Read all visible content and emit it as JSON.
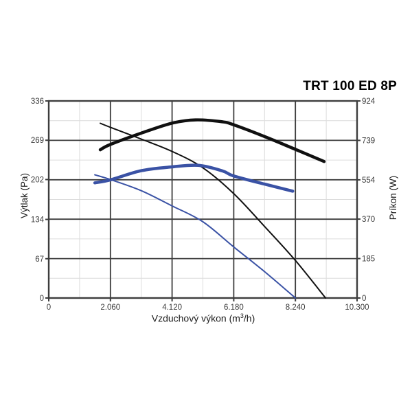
{
  "title": "TRT 100 ED 8P",
  "axis_titles": {
    "x_pre": "Vzduchový výkon (m",
    "x_sup": "3",
    "x_post": "/h)",
    "y_left": "Výtlak (Pa)",
    "y_right": "Príkon (W)"
  },
  "chart_data": {
    "type": "line",
    "title": "TRT 100 ED 8P",
    "xlabel": "Vzduchový výkon (m3/h)",
    "ylabel_left": "Výtlak (Pa)",
    "ylabel_right": "Príkon (W)",
    "xlim": [
      0,
      10300
    ],
    "ylim_left": [
      0,
      336
    ],
    "ylim_right": [
      0,
      924
    ],
    "x_ticks": [
      0,
      2060,
      4120,
      6180,
      8240,
      10300
    ],
    "x_tick_labels": [
      "0",
      "2.060",
      "4.120",
      "6.180",
      "8.240",
      "10.300"
    ],
    "y_left_ticks": [
      0,
      67,
      134,
      202,
      269,
      336
    ],
    "y_left_tick_labels": [
      "0",
      "67",
      "134",
      "202",
      "269",
      "336"
    ],
    "y_right_ticks": [
      0,
      185,
      370,
      554,
      739,
      924
    ],
    "y_right_tick_labels": [
      "0",
      "185",
      "370",
      "554",
      "739",
      "924"
    ],
    "grid": {
      "major": true,
      "minor": true
    },
    "legend": "none",
    "series": [
      {
        "name": "pressure-high-speed",
        "axis": "left",
        "unit": "Pa",
        "color": "#101010",
        "width": 2,
        "points": [
          [
            1720,
            298
          ],
          [
            2060,
            291
          ],
          [
            3090,
            271
          ],
          [
            4120,
            250
          ],
          [
            5150,
            222
          ],
          [
            6180,
            178
          ],
          [
            7210,
            122
          ],
          [
            8240,
            64
          ],
          [
            9250,
            0
          ]
        ]
      },
      {
        "name": "power-high-speed",
        "axis": "right",
        "unit": "W",
        "color": "#101010",
        "width": 4.5,
        "points": [
          [
            1720,
            695
          ],
          [
            2060,
            720
          ],
          [
            3090,
            773
          ],
          [
            4120,
            820
          ],
          [
            4900,
            835
          ],
          [
            5800,
            826
          ],
          [
            6180,
            812
          ],
          [
            7210,
            757
          ],
          [
            8240,
            697
          ],
          [
            9200,
            640
          ]
        ]
      },
      {
        "name": "pressure-low-speed",
        "axis": "left",
        "unit": "Pa",
        "color": "#3a52a5",
        "width": 2,
        "points": [
          [
            1540,
            210
          ],
          [
            2060,
            202
          ],
          [
            3090,
            183
          ],
          [
            4120,
            157
          ],
          [
            5150,
            130
          ],
          [
            6180,
            87
          ],
          [
            7210,
            45
          ],
          [
            8240,
            0
          ]
        ]
      },
      {
        "name": "power-low-speed",
        "axis": "right",
        "unit": "W",
        "color": "#3a52a5",
        "width": 4.5,
        "points": [
          [
            1540,
            540
          ],
          [
            2060,
            554
          ],
          [
            3090,
            597
          ],
          [
            4120,
            615
          ],
          [
            5000,
            622
          ],
          [
            5800,
            596
          ],
          [
            6180,
            572
          ],
          [
            7210,
            534
          ],
          [
            8150,
            501
          ]
        ]
      }
    ],
    "plot_colors": {
      "frame": "#3d3d3d",
      "grid_major": "#3d3d3d",
      "grid_minor": "#dcdcdc",
      "tick_label": "#3c3c3c",
      "title": "#000000"
    }
  }
}
